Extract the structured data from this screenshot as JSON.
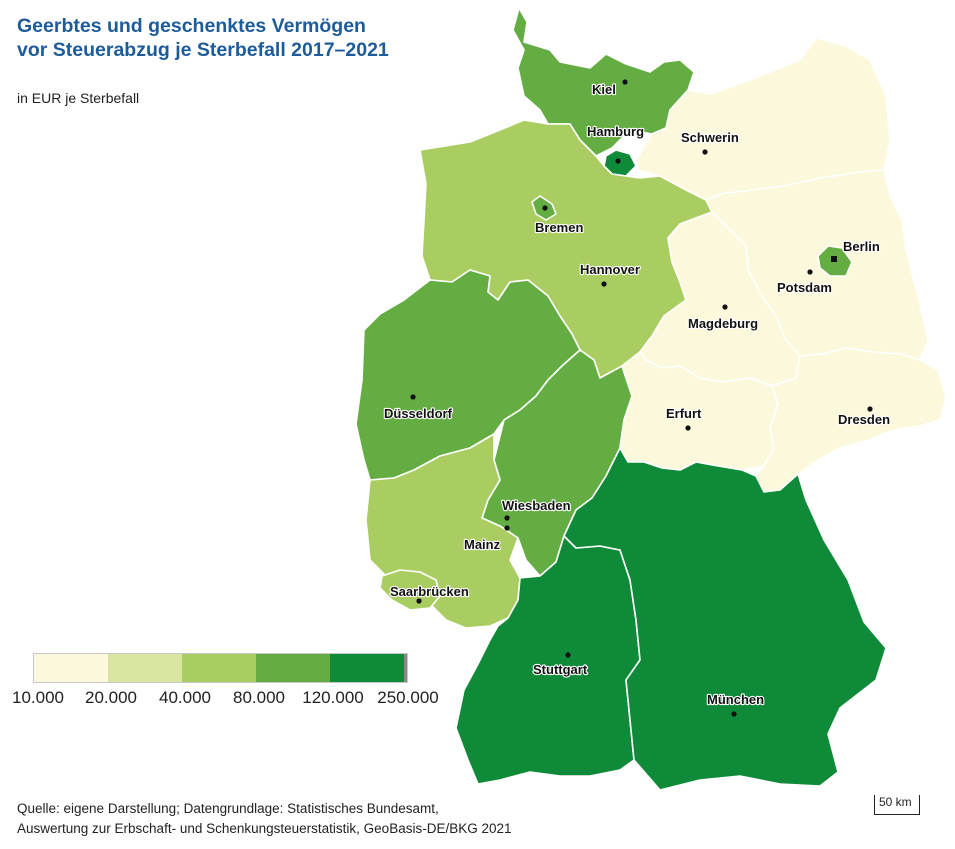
{
  "title_line1": "Geerbtes und geschenktes Vermögen",
  "title_line2": "vor Steuerabzug je Sterbefall 2017–2021",
  "unit": "in EUR je Sterbefall",
  "legend": {
    "breaks": [
      "10.000",
      "20.000",
      "40.000",
      "80.000",
      "120.000",
      "250.000"
    ],
    "colors": [
      "#fcf8dc",
      "#d9e6a3",
      "#aacd62",
      "#63ad42",
      "#0f8a38"
    ]
  },
  "regions": [
    {
      "name": "Schleswig-Holstein",
      "class": 3
    },
    {
      "name": "Hamburg",
      "class": 4
    },
    {
      "name": "Mecklenburg-Vorpommern",
      "class": 0
    },
    {
      "name": "Niedersachsen",
      "class": 2
    },
    {
      "name": "Bremen",
      "class": 3
    },
    {
      "name": "Brandenburg",
      "class": 0
    },
    {
      "name": "Berlin",
      "class": 3
    },
    {
      "name": "Sachsen-Anhalt",
      "class": 0
    },
    {
      "name": "Nordrhein-Westfalen",
      "class": 3
    },
    {
      "name": "Hessen",
      "class": 3
    },
    {
      "name": "Thüringen",
      "class": 0
    },
    {
      "name": "Sachsen",
      "class": 0
    },
    {
      "name": "Rheinland-Pfalz",
      "class": 2
    },
    {
      "name": "Saarland",
      "class": 2
    },
    {
      "name": "Baden-Württemberg",
      "class": 4
    },
    {
      "name": "Bayern",
      "class": 4
    }
  ],
  "cities": {
    "kiel": "Kiel",
    "hamburg": "Hamburg",
    "schwerin": "Schwerin",
    "bremen": "Bremen",
    "hannover": "Hannover",
    "berlin": "Berlin",
    "potsdam": "Potsdam",
    "magdeburg": "Magdeburg",
    "duesseldorf": "Düsseldorf",
    "erfurt": "Erfurt",
    "dresden": "Dresden",
    "wiesbaden": "Wiesbaden",
    "mainz": "Mainz",
    "saarbruecken": "Saarbrücken",
    "stuttgart": "Stuttgart",
    "muenchen": "München"
  },
  "source_line1": "Quelle: eigene Darstellung; Datengrundlage: Statistisches Bundesamt,",
  "source_line2": "Auswertung zur Erbschaft- und Schenkungsteuerstatistik, GeoBasis-DE/BKG 2021",
  "scale_label": "50 km"
}
